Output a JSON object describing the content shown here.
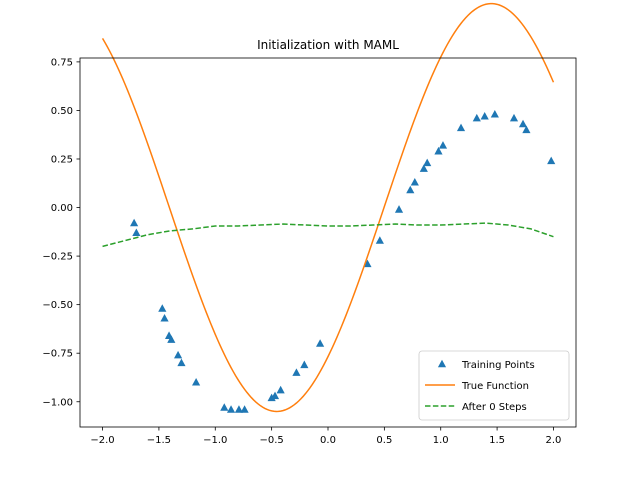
{
  "chart_data": {
    "type": "line",
    "title": "Initialization with MAML",
    "xlabel": "",
    "ylabel": "",
    "xlim": [
      -2.2,
      2.2
    ],
    "ylim": [
      -1.13,
      0.77
    ],
    "xticks": [
      -2.0,
      -1.5,
      -1.0,
      -0.5,
      0.0,
      0.5,
      1.0,
      1.5,
      2.0
    ],
    "xtick_labels": [
      "−2.0",
      "−1.5",
      "−1.0",
      "−0.5",
      "0.0",
      "0.5",
      "1.0",
      "1.5",
      "2.0"
    ],
    "yticks": [
      0.75,
      0.5,
      0.25,
      0.0,
      -0.25,
      -0.5,
      -0.75,
      -1.0
    ],
    "ytick_labels": [
      "0.75",
      "0.50",
      "0.25",
      "0.00",
      "−0.25",
      "−0.50",
      "−0.75",
      "−1.00"
    ],
    "grid": false,
    "legend": "lower-right",
    "series": [
      {
        "name": "Training Points",
        "kind": "scatter",
        "marker": "triangle",
        "color": "#1f77b4",
        "x": [
          -1.72,
          -1.7,
          -1.47,
          -1.45,
          -1.41,
          -1.39,
          -1.33,
          -1.3,
          -1.17,
          -0.92,
          -0.86,
          -0.79,
          -0.74,
          -0.5,
          -0.47,
          -0.42,
          -0.28,
          -0.21,
          -0.07,
          0.35,
          0.46,
          0.63,
          0.73,
          0.77,
          0.85,
          0.88,
          0.98,
          1.02,
          1.18,
          1.32,
          1.39,
          1.48,
          1.65,
          1.73,
          1.76,
          1.98
        ],
        "y": [
          -0.08,
          -0.13,
          -0.52,
          -0.57,
          -0.66,
          -0.68,
          -0.76,
          -0.8,
          -0.9,
          -1.03,
          -1.04,
          -1.04,
          -1.04,
          -0.98,
          -0.97,
          -0.94,
          -0.85,
          -0.81,
          -0.7,
          -0.29,
          -0.17,
          -0.01,
          0.09,
          0.13,
          0.2,
          0.23,
          0.29,
          0.32,
          0.41,
          0.46,
          0.47,
          0.48,
          0.46,
          0.43,
          0.4,
          0.24
        ]
      },
      {
        "name": "True Function",
        "kind": "line",
        "color": "#ff7f0e",
        "dash": "solid",
        "amplitude": 1.05,
        "frequency": 1.65,
        "phase": 0.82,
        "x_range": [
          -2.0,
          2.0
        ]
      },
      {
        "name": "After 0 Steps",
        "kind": "line",
        "color": "#2ca02c",
        "dash": "dashed",
        "x": [
          -2.0,
          -1.8,
          -1.6,
          -1.4,
          -1.2,
          -1.0,
          -0.8,
          -0.6,
          -0.4,
          -0.2,
          0.0,
          0.2,
          0.4,
          0.6,
          0.8,
          1.0,
          1.2,
          1.4,
          1.6,
          1.8,
          2.0
        ],
        "y": [
          -0.2,
          -0.17,
          -0.14,
          -0.12,
          -0.11,
          -0.095,
          -0.095,
          -0.09,
          -0.085,
          -0.09,
          -0.095,
          -0.095,
          -0.09,
          -0.085,
          -0.09,
          -0.09,
          -0.085,
          -0.08,
          -0.09,
          -0.11,
          -0.15
        ]
      }
    ]
  }
}
